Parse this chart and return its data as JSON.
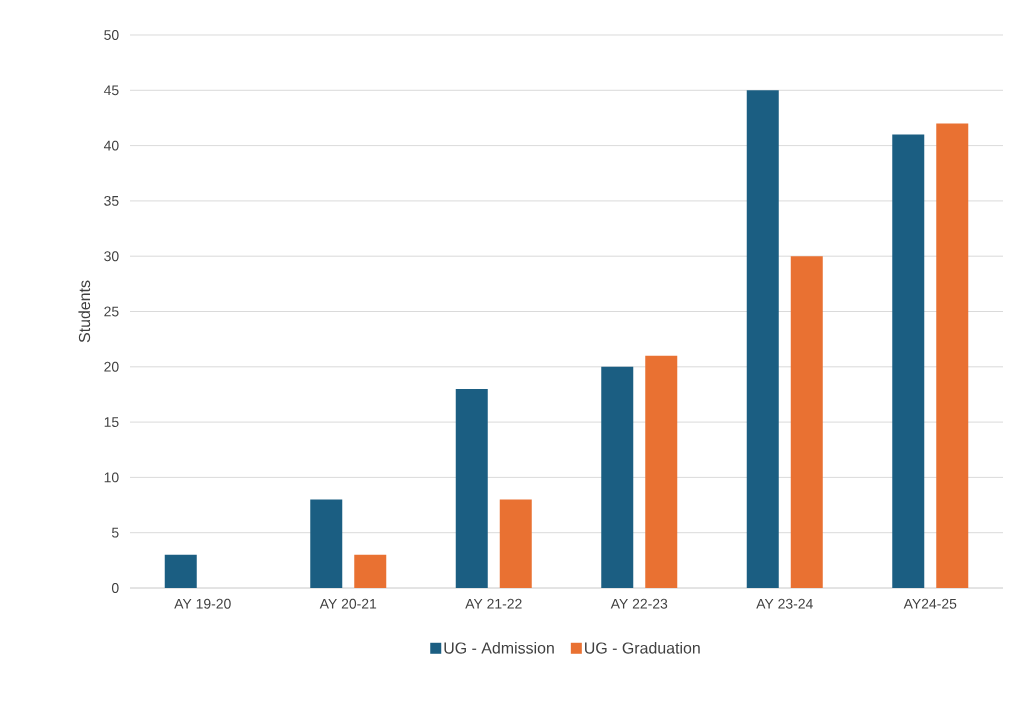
{
  "chart_data": {
    "type": "bar",
    "ylabel": "Students",
    "categories": [
      "AY 19-20",
      "AY 20-21",
      "AY 21-22",
      "AY 22-23",
      "AY 23-24",
      "AY24-25"
    ],
    "series": [
      {
        "name": "UG - Admission",
        "color": "#1b5e82",
        "values": [
          3,
          8,
          18,
          20,
          45,
          41
        ]
      },
      {
        "name": "UG - Graduation",
        "color": "#e97132",
        "values": [
          0,
          3,
          8,
          21,
          30,
          42
        ]
      }
    ],
    "ylim": [
      0,
      50
    ],
    "yticks": [
      0,
      5,
      10,
      15,
      20,
      25,
      30,
      35,
      40,
      45,
      50
    ],
    "grid": "y",
    "legend": "bottom"
  }
}
